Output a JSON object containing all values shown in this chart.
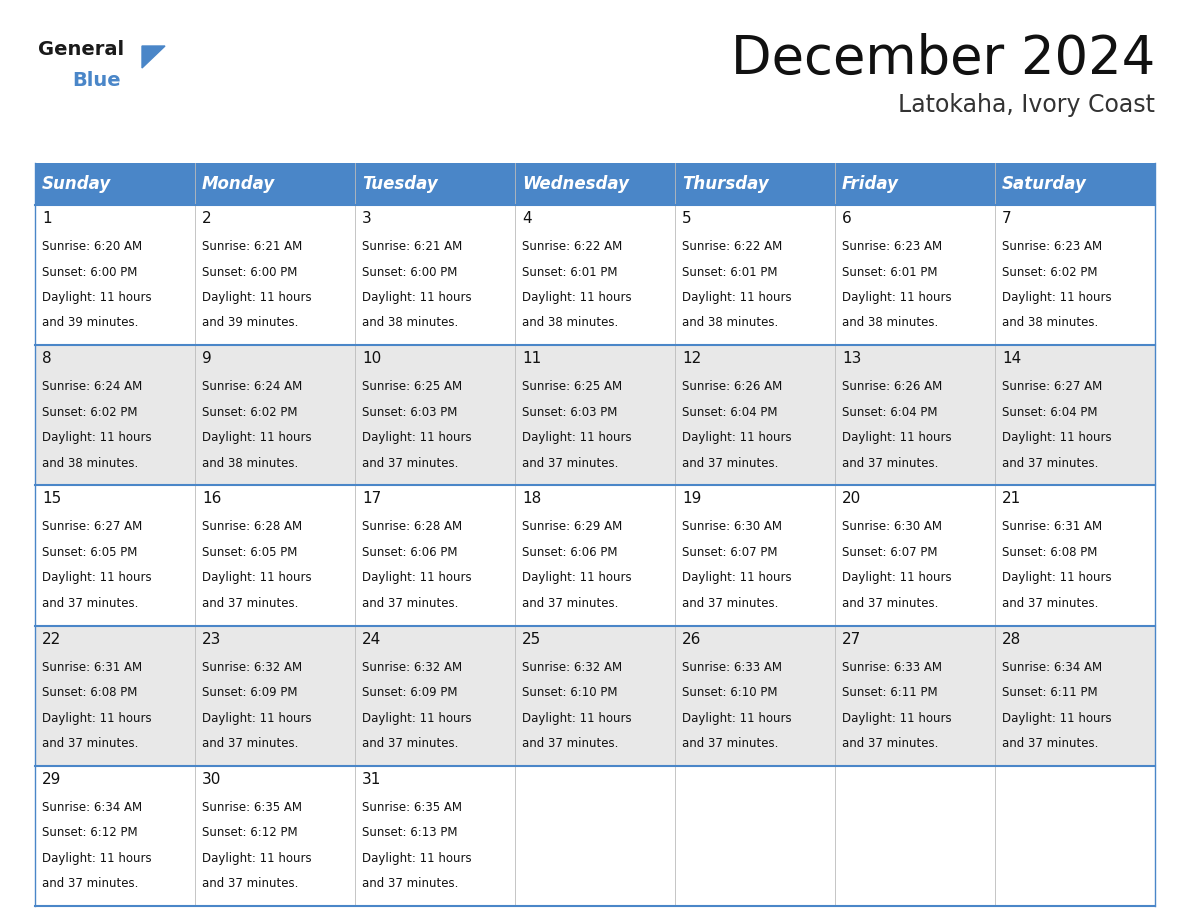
{
  "title": "December 2024",
  "subtitle": "Latokaha, Ivory Coast",
  "header_color": "#4a86c8",
  "header_text_color": "#FFFFFF",
  "cell_bg_even": "#FFFFFF",
  "cell_bg_odd": "#E8E8E8",
  "border_color": "#4a86c8",
  "days_of_week": [
    "Sunday",
    "Monday",
    "Tuesday",
    "Wednesday",
    "Thursday",
    "Friday",
    "Saturday"
  ],
  "calendar_data": [
    [
      {
        "day": 1,
        "sunrise": "6:20 AM",
        "sunset": "6:00 PM",
        "daylight_hours": 11,
        "daylight_minutes": 39
      },
      {
        "day": 2,
        "sunrise": "6:21 AM",
        "sunset": "6:00 PM",
        "daylight_hours": 11,
        "daylight_minutes": 39
      },
      {
        "day": 3,
        "sunrise": "6:21 AM",
        "sunset": "6:00 PM",
        "daylight_hours": 11,
        "daylight_minutes": 38
      },
      {
        "day": 4,
        "sunrise": "6:22 AM",
        "sunset": "6:01 PM",
        "daylight_hours": 11,
        "daylight_minutes": 38
      },
      {
        "day": 5,
        "sunrise": "6:22 AM",
        "sunset": "6:01 PM",
        "daylight_hours": 11,
        "daylight_minutes": 38
      },
      {
        "day": 6,
        "sunrise": "6:23 AM",
        "sunset": "6:01 PM",
        "daylight_hours": 11,
        "daylight_minutes": 38
      },
      {
        "day": 7,
        "sunrise": "6:23 AM",
        "sunset": "6:02 PM",
        "daylight_hours": 11,
        "daylight_minutes": 38
      }
    ],
    [
      {
        "day": 8,
        "sunrise": "6:24 AM",
        "sunset": "6:02 PM",
        "daylight_hours": 11,
        "daylight_minutes": 38
      },
      {
        "day": 9,
        "sunrise": "6:24 AM",
        "sunset": "6:02 PM",
        "daylight_hours": 11,
        "daylight_minutes": 38
      },
      {
        "day": 10,
        "sunrise": "6:25 AM",
        "sunset": "6:03 PM",
        "daylight_hours": 11,
        "daylight_minutes": 37
      },
      {
        "day": 11,
        "sunrise": "6:25 AM",
        "sunset": "6:03 PM",
        "daylight_hours": 11,
        "daylight_minutes": 37
      },
      {
        "day": 12,
        "sunrise": "6:26 AM",
        "sunset": "6:04 PM",
        "daylight_hours": 11,
        "daylight_minutes": 37
      },
      {
        "day": 13,
        "sunrise": "6:26 AM",
        "sunset": "6:04 PM",
        "daylight_hours": 11,
        "daylight_minutes": 37
      },
      {
        "day": 14,
        "sunrise": "6:27 AM",
        "sunset": "6:04 PM",
        "daylight_hours": 11,
        "daylight_minutes": 37
      }
    ],
    [
      {
        "day": 15,
        "sunrise": "6:27 AM",
        "sunset": "6:05 PM",
        "daylight_hours": 11,
        "daylight_minutes": 37
      },
      {
        "day": 16,
        "sunrise": "6:28 AM",
        "sunset": "6:05 PM",
        "daylight_hours": 11,
        "daylight_minutes": 37
      },
      {
        "day": 17,
        "sunrise": "6:28 AM",
        "sunset": "6:06 PM",
        "daylight_hours": 11,
        "daylight_minutes": 37
      },
      {
        "day": 18,
        "sunrise": "6:29 AM",
        "sunset": "6:06 PM",
        "daylight_hours": 11,
        "daylight_minutes": 37
      },
      {
        "day": 19,
        "sunrise": "6:30 AM",
        "sunset": "6:07 PM",
        "daylight_hours": 11,
        "daylight_minutes": 37
      },
      {
        "day": 20,
        "sunrise": "6:30 AM",
        "sunset": "6:07 PM",
        "daylight_hours": 11,
        "daylight_minutes": 37
      },
      {
        "day": 21,
        "sunrise": "6:31 AM",
        "sunset": "6:08 PM",
        "daylight_hours": 11,
        "daylight_minutes": 37
      }
    ],
    [
      {
        "day": 22,
        "sunrise": "6:31 AM",
        "sunset": "6:08 PM",
        "daylight_hours": 11,
        "daylight_minutes": 37
      },
      {
        "day": 23,
        "sunrise": "6:32 AM",
        "sunset": "6:09 PM",
        "daylight_hours": 11,
        "daylight_minutes": 37
      },
      {
        "day": 24,
        "sunrise": "6:32 AM",
        "sunset": "6:09 PM",
        "daylight_hours": 11,
        "daylight_minutes": 37
      },
      {
        "day": 25,
        "sunrise": "6:32 AM",
        "sunset": "6:10 PM",
        "daylight_hours": 11,
        "daylight_minutes": 37
      },
      {
        "day": 26,
        "sunrise": "6:33 AM",
        "sunset": "6:10 PM",
        "daylight_hours": 11,
        "daylight_minutes": 37
      },
      {
        "day": 27,
        "sunrise": "6:33 AM",
        "sunset": "6:11 PM",
        "daylight_hours": 11,
        "daylight_minutes": 37
      },
      {
        "day": 28,
        "sunrise": "6:34 AM",
        "sunset": "6:11 PM",
        "daylight_hours": 11,
        "daylight_minutes": 37
      }
    ],
    [
      {
        "day": 29,
        "sunrise": "6:34 AM",
        "sunset": "6:12 PM",
        "daylight_hours": 11,
        "daylight_minutes": 37
      },
      {
        "day": 30,
        "sunrise": "6:35 AM",
        "sunset": "6:12 PM",
        "daylight_hours": 11,
        "daylight_minutes": 37
      },
      {
        "day": 31,
        "sunrise": "6:35 AM",
        "sunset": "6:13 PM",
        "daylight_hours": 11,
        "daylight_minutes": 37
      },
      null,
      null,
      null,
      null
    ]
  ],
  "logo_color_general": "#1a1a1a",
  "logo_color_blue": "#4a86c8",
  "title_fontsize": 38,
  "subtitle_fontsize": 17,
  "header_fontsize": 12,
  "day_num_fontsize": 11,
  "cell_text_fontsize": 8.5
}
